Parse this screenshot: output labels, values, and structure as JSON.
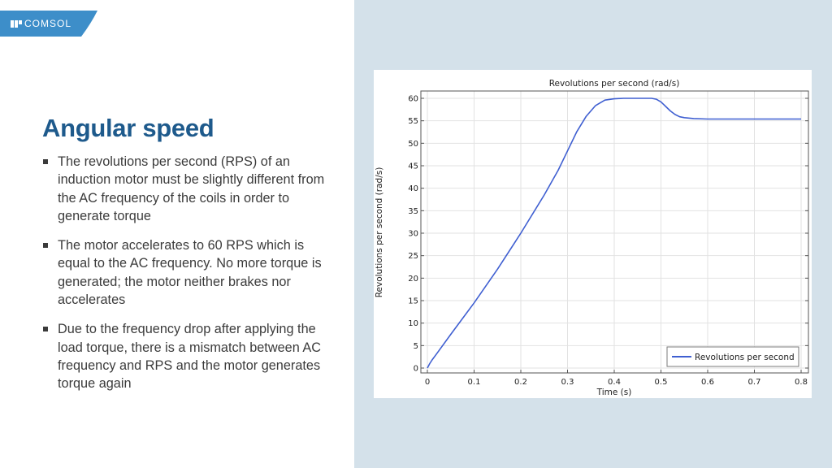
{
  "logo": {
    "name": "COMSOL"
  },
  "slide": {
    "title": "Angular speed",
    "bullets": [
      "The revolutions per second (RPS) of an induction motor must be slightly different from the AC frequency of the coils in order to generate torque",
      "The motor accelerates to 60 RPS which is equal to the AC frequency. No more torque is generated; the motor neither brakes nor accelerates",
      "Due to the frequency drop after applying the load torque, there is a mismatch between AC frequency and RPS and the motor generates torque again"
    ]
  },
  "colors": {
    "title": "#1e5a8c",
    "panel": "#d4e1ea",
    "logo_bg": "#3d8ec9",
    "series": "#3f5fd1"
  },
  "chart_data": {
    "type": "line",
    "title": "Revolutions per second (rad/s)",
    "xlabel": "Time (s)",
    "ylabel": "Revolutions per second (rad/s)",
    "xlim": [
      0,
      0.8
    ],
    "ylim": [
      0,
      60
    ],
    "xticks": [
      "0",
      "0.1",
      "0.2",
      "0.3",
      "0.4",
      "0.5",
      "0.6",
      "0.7",
      "0.8"
    ],
    "yticks": [
      "0",
      "5",
      "10",
      "15",
      "20",
      "25",
      "30",
      "35",
      "40",
      "45",
      "50",
      "55",
      "60"
    ],
    "grid": true,
    "legend_position": "bottom-right",
    "series": [
      {
        "name": "Revolutions per second",
        "x": [
          0,
          0.005,
          0.01,
          0.02,
          0.05,
          0.1,
          0.15,
          0.2,
          0.25,
          0.28,
          0.3,
          0.32,
          0.34,
          0.36,
          0.38,
          0.4,
          0.42,
          0.45,
          0.48,
          0.49,
          0.5,
          0.51,
          0.52,
          0.53,
          0.54,
          0.55,
          0.57,
          0.6,
          0.65,
          0.7,
          0.75,
          0.8
        ],
        "y": [
          0,
          1,
          1.8,
          3.2,
          7.5,
          14.5,
          22,
          30,
          38.5,
          44,
          48.3,
          52.6,
          56,
          58.4,
          59.6,
          59.9,
          60,
          60,
          60,
          59.8,
          59.2,
          58.2,
          57.2,
          56.4,
          55.9,
          55.7,
          55.5,
          55.4,
          55.4,
          55.4,
          55.4,
          55.4
        ]
      }
    ]
  }
}
